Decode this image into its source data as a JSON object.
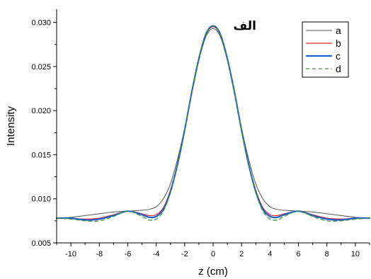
{
  "chart_data": {
    "type": "line",
    "panel_label": "الف",
    "xlabel": "z (cm)",
    "ylabel": "Intensity",
    "xlim": [
      -11,
      11
    ],
    "ylim": [
      0.005,
      0.0315
    ],
    "x_ticks": [
      -10,
      -8,
      -6,
      -4,
      -2,
      0,
      2,
      4,
      6,
      8,
      10
    ],
    "y_ticks": [
      0.005,
      0.01,
      0.015,
      0.02,
      0.025,
      0.03
    ],
    "y_tick_labels": [
      "0.005",
      "0.010",
      "0.015",
      "0.020",
      "0.025",
      "0.030"
    ],
    "grid": false,
    "legend_position": "top-right",
    "x": [
      -11,
      -10,
      -9,
      -8,
      -7,
      -6,
      -5,
      -4.5,
      -4,
      -3.5,
      -3,
      -2.5,
      -2,
      -1.5,
      -1,
      -0.5,
      0,
      0.5,
      1,
      1.5,
      2,
      2.5,
      3,
      3.5,
      4,
      4.5,
      5,
      6,
      7,
      8,
      9,
      10,
      11
    ],
    "series": [
      {
        "name": "a",
        "color": "#555555",
        "dash": "solid",
        "width": 1.0,
        "values": [
          0.0078,
          0.0079,
          0.0081,
          0.0083,
          0.0085,
          0.0086,
          0.0087,
          0.0088,
          0.0091,
          0.01,
          0.0117,
          0.0145,
          0.018,
          0.022,
          0.0257,
          0.0284,
          0.0293,
          0.0284,
          0.0257,
          0.022,
          0.018,
          0.0145,
          0.0117,
          0.01,
          0.0091,
          0.0088,
          0.0087,
          0.0086,
          0.0085,
          0.0083,
          0.0081,
          0.0079,
          0.0078
        ]
      },
      {
        "name": "b",
        "color": "#e8202a",
        "dash": "solid",
        "width": 1.2,
        "values": [
          0.0078,
          0.0078,
          0.0077,
          0.0078,
          0.0082,
          0.0086,
          0.0083,
          0.0081,
          0.0082,
          0.009,
          0.011,
          0.014,
          0.0178,
          0.022,
          0.0258,
          0.0286,
          0.0295,
          0.0286,
          0.0258,
          0.022,
          0.0178,
          0.014,
          0.011,
          0.009,
          0.0082,
          0.0081,
          0.0083,
          0.0086,
          0.0082,
          0.0078,
          0.0077,
          0.0078,
          0.0078
        ]
      },
      {
        "name": "c",
        "color": "#1f5fd0",
        "dash": "solid",
        "width": 2.2,
        "values": [
          0.0078,
          0.0078,
          0.0076,
          0.0077,
          0.0081,
          0.0086,
          0.0082,
          0.0079,
          0.008,
          0.0088,
          0.0108,
          0.0139,
          0.0178,
          0.0221,
          0.0259,
          0.0287,
          0.0296,
          0.0287,
          0.0259,
          0.0221,
          0.0178,
          0.0139,
          0.0108,
          0.0088,
          0.008,
          0.0079,
          0.0082,
          0.0086,
          0.0081,
          0.0077,
          0.0076,
          0.0078,
          0.0078
        ]
      },
      {
        "name": "d",
        "color": "#3a9a3a",
        "dash": "5,4",
        "width": 1.3,
        "values": [
          0.0078,
          0.0077,
          0.0075,
          0.0075,
          0.008,
          0.0086,
          0.008,
          0.0076,
          0.0077,
          0.0086,
          0.0107,
          0.0139,
          0.0178,
          0.0221,
          0.0259,
          0.0287,
          0.0296,
          0.0287,
          0.0259,
          0.0221,
          0.0178,
          0.0139,
          0.0107,
          0.0086,
          0.0077,
          0.0076,
          0.008,
          0.0086,
          0.008,
          0.0075,
          0.0075,
          0.0077,
          0.0078
        ]
      }
    ]
  }
}
